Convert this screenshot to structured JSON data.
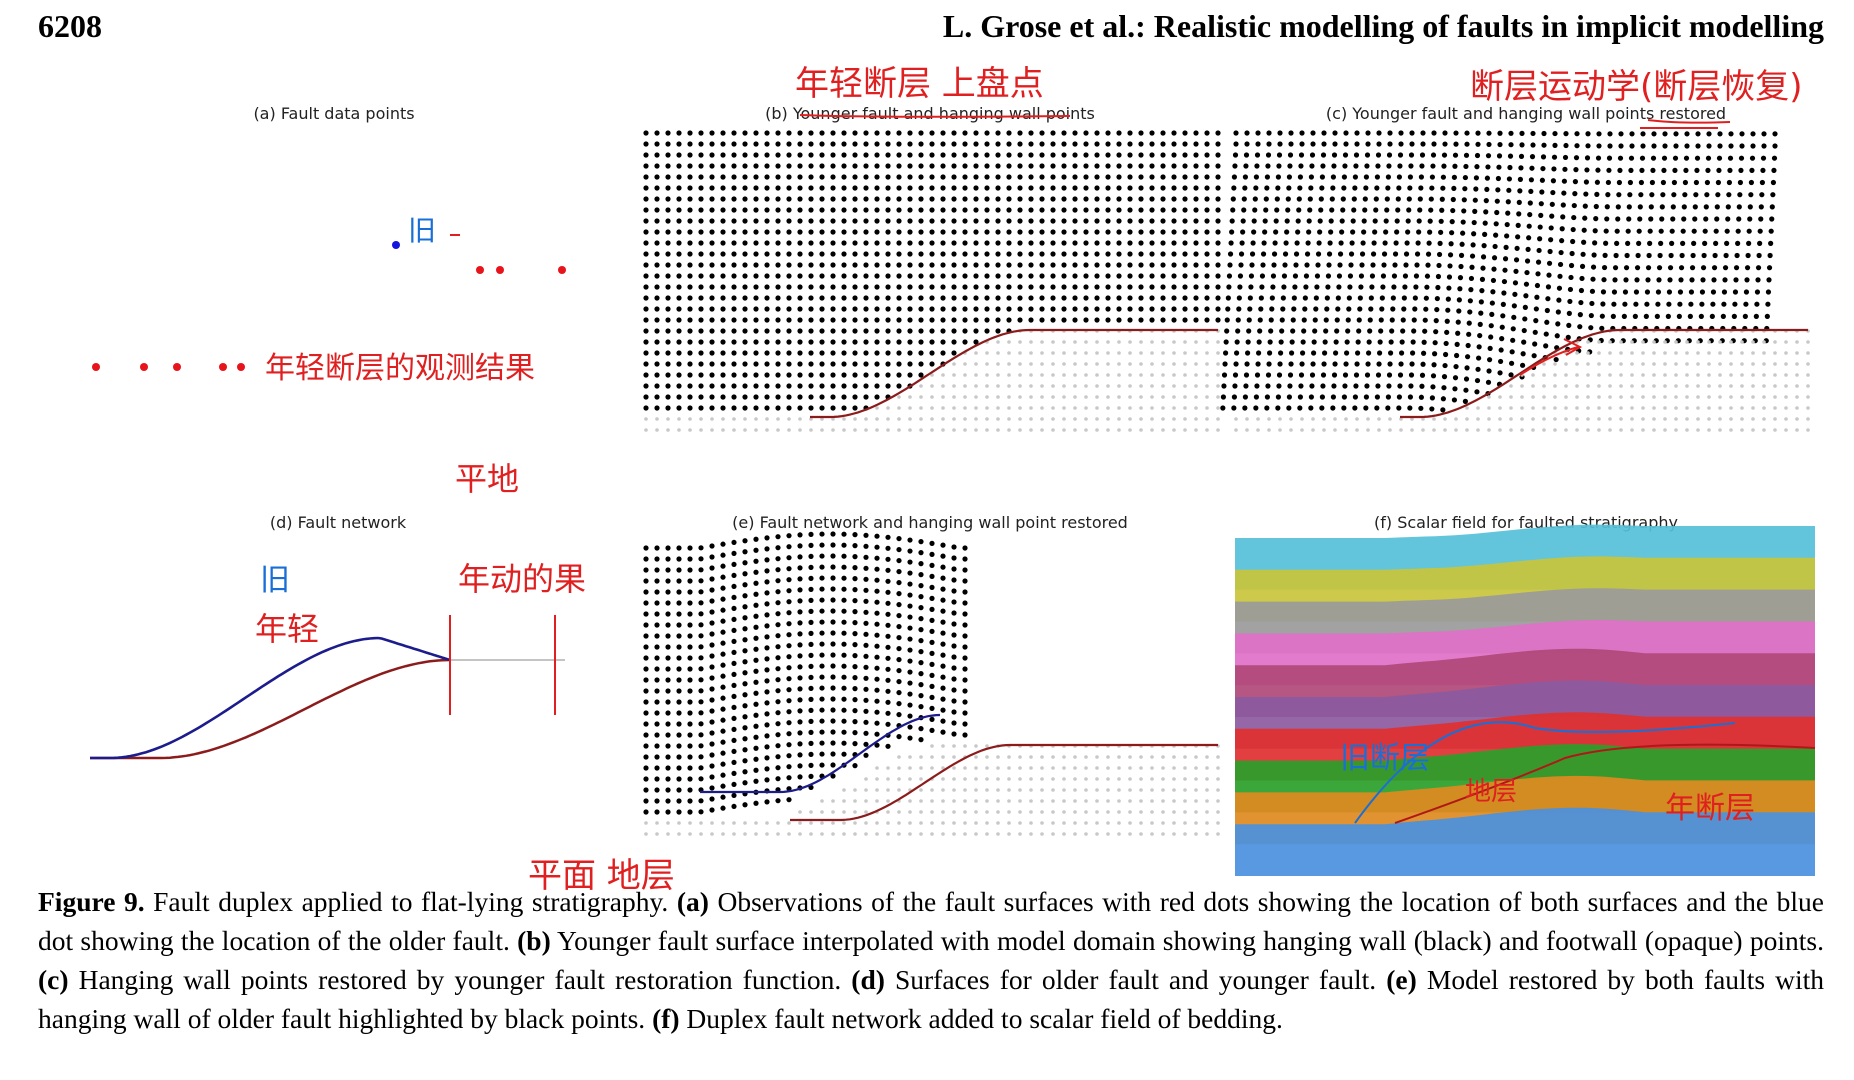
{
  "header": {
    "page_number": "6208",
    "running_head": "L. Grose et al.: Realistic modelling of faults in implicit modelling"
  },
  "panels": [
    {
      "id": "a",
      "title": "(a) Fault data points"
    },
    {
      "id": "b",
      "title": "(b) Younger fault and hanging wall points"
    },
    {
      "id": "c",
      "title": "(c) Younger fault and hanging wall points restored"
    },
    {
      "id": "d",
      "title": "(d) Fault network"
    },
    {
      "id": "e",
      "title": "(e) Fault network and hanging wall point restored"
    },
    {
      "id": "f",
      "title": "(f) Scalar field for faulted stratigraphy"
    }
  ],
  "annotations": {
    "a_old": "旧",
    "a_note": "年轻断层的观测结果",
    "b_note": "年轻断层 上盘点",
    "c_note": "断层运动学(断层恢复)",
    "d_old": "旧",
    "d_young": "年轻",
    "d_flat": "平地",
    "d_result": "年动的果",
    "e_note": "平面 地层",
    "f_note1": "旧断层",
    "f_note2": "地层",
    "f_note3": "年断层"
  },
  "caption": {
    "label": "Figure 9.",
    "intro": " Fault duplex applied to flat-lying stratigraphy. ",
    "a_label": "(a)",
    "a_text": " Observations of the fault surfaces with red dots showing the location of both surfaces and the blue dot showing the location of the older fault. ",
    "b_label": "(b)",
    "b_text": " Younger fault surface interpolated with model domain showing hanging wall (black) and footwall (opaque) points. ",
    "c_label": "(c)",
    "c_text": " Hanging wall points restored by younger fault restoration function. ",
    "d_label": "(d)",
    "d_text": " Surfaces for older fault and younger fault. ",
    "e_label": "(e)",
    "e_text": " Model restored by both faults with hanging wall of older fault highlighted by black points. ",
    "f_label": "(f)",
    "f_text": " Duplex fault network added to scalar field of bedding."
  },
  "colors": {
    "red_dot": "#e8141c",
    "blue_dot": "#1414e0",
    "ink_red": "#e02020",
    "ink_blue": "#1a6fd6",
    "old_fault": "#1c1c8c",
    "young_fault": "#8c1c1c"
  }
}
